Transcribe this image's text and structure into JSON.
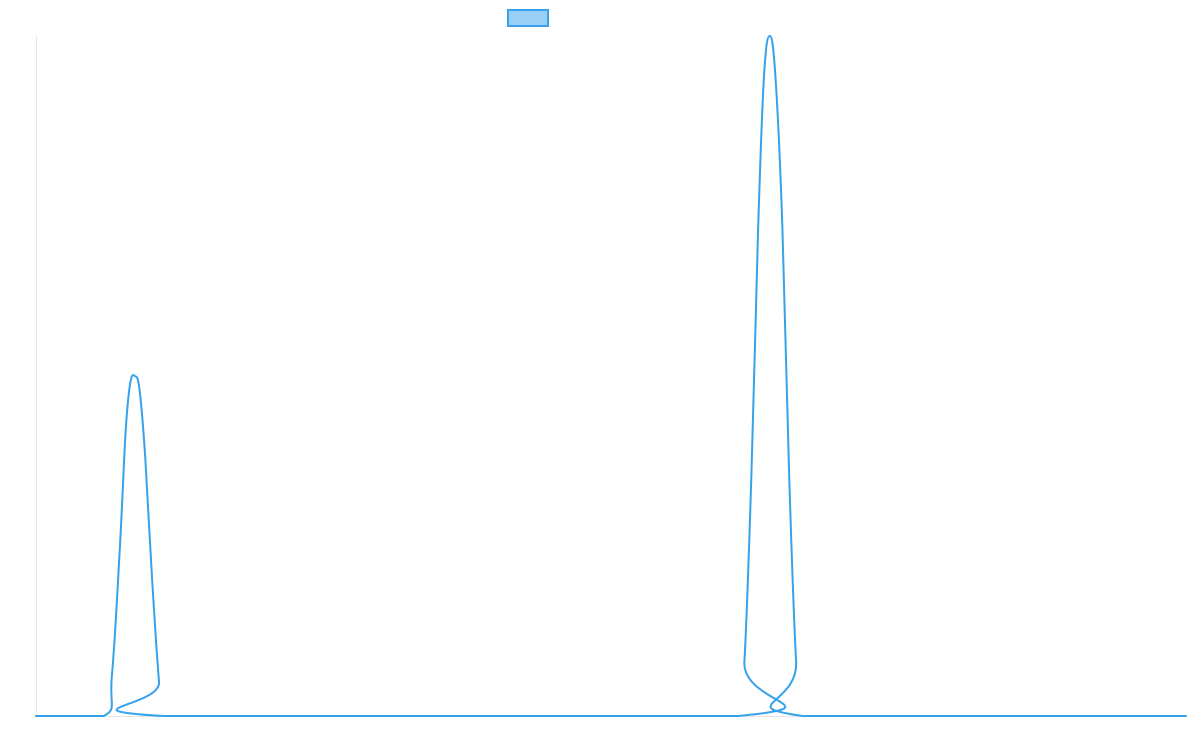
{
  "chart_data": {
    "type": "line",
    "title": "",
    "xlabel": "",
    "ylabel": "",
    "xlim": [
      0,
      100
    ],
    "ylim": [
      0,
      1
    ],
    "grid": false,
    "legend": "top-center",
    "series": [
      {
        "name": "",
        "color": "#36a2eb",
        "fill": "#9ad0f5",
        "points": [
          [
            0,
            0
          ],
          [
            5.9,
            0
          ],
          [
            6.6,
            0.06
          ],
          [
            7.3,
            0.25
          ],
          [
            7.8,
            0.42
          ],
          [
            8.2,
            0.49
          ],
          [
            8.6,
            0.5
          ],
          [
            9.0,
            0.48
          ],
          [
            9.5,
            0.38
          ],
          [
            10.1,
            0.2
          ],
          [
            10.7,
            0.05
          ],
          [
            11.1,
            0
          ],
          [
            61.0,
            0
          ],
          [
            61.6,
            0.08
          ],
          [
            62.2,
            0.35
          ],
          [
            62.8,
            0.72
          ],
          [
            63.3,
            0.94
          ],
          [
            63.8,
            1.0
          ],
          [
            64.3,
            0.94
          ],
          [
            64.9,
            0.72
          ],
          [
            65.5,
            0.35
          ],
          [
            66.1,
            0.08
          ],
          [
            66.7,
            0
          ],
          [
            100,
            0
          ]
        ]
      }
    ]
  }
}
